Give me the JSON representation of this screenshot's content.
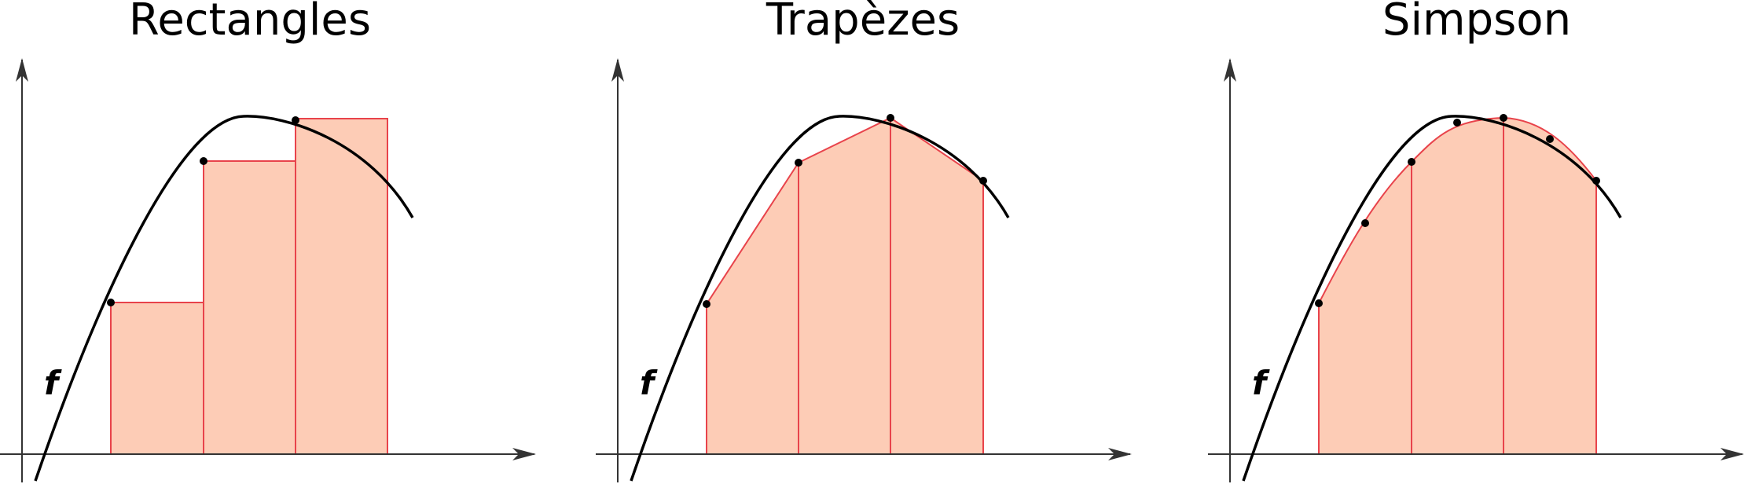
{
  "colors": {
    "fill": "#fdccb6",
    "edge": "#e8434b",
    "curve": "#000000",
    "axis": "#333333",
    "point": "#000000"
  },
  "panels": [
    {
      "title": "Rectangles",
      "method": "rectangles",
      "function_label": "f"
    },
    {
      "title": "Trapèzes",
      "method": "trapezes",
      "function_label": "f"
    },
    {
      "title": "Simpson",
      "method": "simpson",
      "function_label": "f"
    }
  ]
}
